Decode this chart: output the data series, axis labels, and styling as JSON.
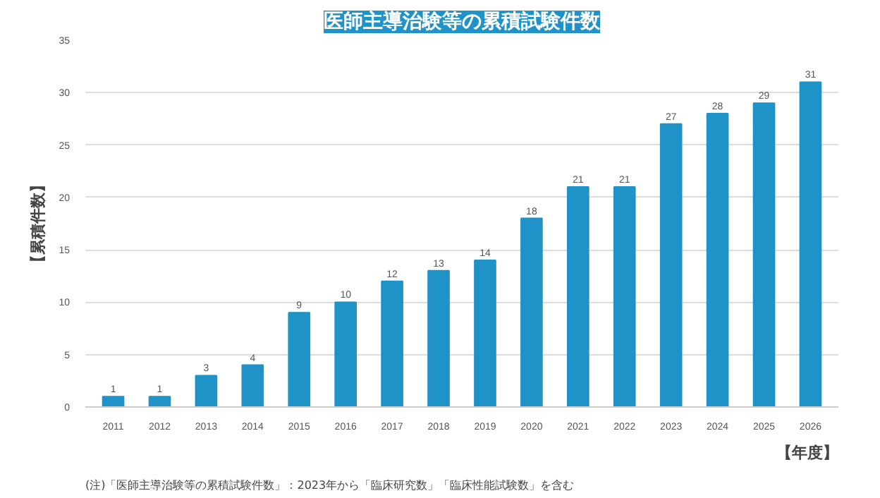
{
  "chart_data": {
    "type": "bar",
    "title": "医師主導治験等の累積試験件数",
    "ylabel": "【累積件数】",
    "xlabel": "【年度】",
    "categories": [
      "2011",
      "2012",
      "2013",
      "2014",
      "2015",
      "2016",
      "2017",
      "2018",
      "2019",
      "2020",
      "2021",
      "2022",
      "2023",
      "2024",
      "2025",
      "2026"
    ],
    "values": [
      1,
      1,
      3,
      4,
      9,
      10,
      12,
      13,
      14,
      18,
      21,
      21,
      27,
      28,
      29,
      31
    ],
    "color": "#1f93c7",
    "ylim": [
      0,
      35
    ],
    "yticks": [
      0,
      5,
      10,
      15,
      20,
      25,
      30,
      35
    ],
    "grid": "y",
    "data_labels": true,
    "annotations": [
      "(注)「医師主導治験等の累積試験件数」：2023年から「臨床研究数」「臨床性能試験数」を含む"
    ]
  }
}
